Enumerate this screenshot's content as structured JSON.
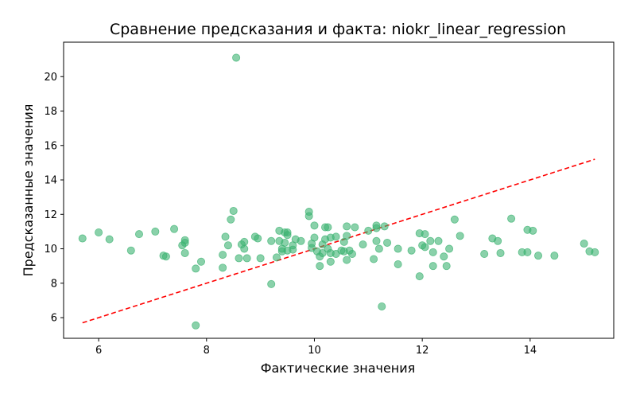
{
  "chart_data": {
    "type": "scatter",
    "title": "Сравнение предсказания и факта: niokr_linear_regression",
    "xlabel": "Фактические значения",
    "ylabel": "Предсказанные значения",
    "xlim": [
      5.35,
      15.55
    ],
    "ylim": [
      4.8,
      22.0
    ],
    "xticks": [
      6,
      8,
      10,
      12,
      14
    ],
    "yticks": [
      6,
      8,
      10,
      12,
      14,
      16,
      18,
      20
    ],
    "grid": false,
    "legend": "none",
    "point_color": "#3cb371",
    "line_color": "#ff0000",
    "reference_line": {
      "style": "dashed",
      "x": [
        5.7,
        15.2
      ],
      "y": [
        5.7,
        15.2
      ]
    },
    "points": [
      [
        5.7,
        10.6
      ],
      [
        6.0,
        10.95
      ],
      [
        6.2,
        10.55
      ],
      [
        6.6,
        9.9
      ],
      [
        6.75,
        10.85
      ],
      [
        7.05,
        11.0
      ],
      [
        7.2,
        9.6
      ],
      [
        7.25,
        9.55
      ],
      [
        7.4,
        11.15
      ],
      [
        7.55,
        10.2
      ],
      [
        7.6,
        10.5
      ],
      [
        7.6,
        10.35
      ],
      [
        7.6,
        9.75
      ],
      [
        7.8,
        8.85
      ],
      [
        7.8,
        5.55
      ],
      [
        7.9,
        9.25
      ],
      [
        8.3,
        9.65
      ],
      [
        8.3,
        8.9
      ],
      [
        8.35,
        10.7
      ],
      [
        8.4,
        10.2
      ],
      [
        8.45,
        11.7
      ],
      [
        8.5,
        12.2
      ],
      [
        8.55,
        21.1
      ],
      [
        8.6,
        9.45
      ],
      [
        8.65,
        10.25
      ],
      [
        8.7,
        10.4
      ],
      [
        8.7,
        10.0
      ],
      [
        8.75,
        9.45
      ],
      [
        8.9,
        10.7
      ],
      [
        8.95,
        10.6
      ],
      [
        9.0,
        9.45
      ],
      [
        9.2,
        7.95
      ],
      [
        9.2,
        10.45
      ],
      [
        9.3,
        9.5
      ],
      [
        9.35,
        10.45
      ],
      [
        9.35,
        11.05
      ],
      [
        9.4,
        10.0
      ],
      [
        9.4,
        9.85
      ],
      [
        9.45,
        10.95
      ],
      [
        9.45,
        10.35
      ],
      [
        9.5,
        10.95
      ],
      [
        9.5,
        10.8
      ],
      [
        9.5,
        9.9
      ],
      [
        9.6,
        9.95
      ],
      [
        9.6,
        10.2
      ],
      [
        9.65,
        10.55
      ],
      [
        9.75,
        10.45
      ],
      [
        9.9,
        12.15
      ],
      [
        9.9,
        11.9
      ],
      [
        9.95,
        10.3
      ],
      [
        9.95,
        10.05
      ],
      [
        10.0,
        10.65
      ],
      [
        10.0,
        11.35
      ],
      [
        10.05,
        9.85
      ],
      [
        10.1,
        9.55
      ],
      [
        10.1,
        9.0
      ],
      [
        10.15,
        9.75
      ],
      [
        10.15,
        10.25
      ],
      [
        10.2,
        10.55
      ],
      [
        10.2,
        11.25
      ],
      [
        10.25,
        11.25
      ],
      [
        10.25,
        10.0
      ],
      [
        10.3,
        9.25
      ],
      [
        10.3,
        9.75
      ],
      [
        10.3,
        10.65
      ],
      [
        10.4,
        10.7
      ],
      [
        10.4,
        9.7
      ],
      [
        10.5,
        9.9
      ],
      [
        10.55,
        10.4
      ],
      [
        10.55,
        9.85
      ],
      [
        10.6,
        11.3
      ],
      [
        10.6,
        10.75
      ],
      [
        10.6,
        9.35
      ],
      [
        10.65,
        9.9
      ],
      [
        10.7,
        9.7
      ],
      [
        10.75,
        11.25
      ],
      [
        10.9,
        10.25
      ],
      [
        11.0,
        11.05
      ],
      [
        11.1,
        9.4
      ],
      [
        11.15,
        11.2
      ],
      [
        11.15,
        11.35
      ],
      [
        11.15,
        10.45
      ],
      [
        11.2,
        10.0
      ],
      [
        11.25,
        6.65
      ],
      [
        11.3,
        11.3
      ],
      [
        11.35,
        10.35
      ],
      [
        11.55,
        10.0
      ],
      [
        11.55,
        9.1
      ],
      [
        11.8,
        9.9
      ],
      [
        11.95,
        8.4
      ],
      [
        11.95,
        10.9
      ],
      [
        12.0,
        10.2
      ],
      [
        12.05,
        10.85
      ],
      [
        12.05,
        10.1
      ],
      [
        12.15,
        10.45
      ],
      [
        12.2,
        9.0
      ],
      [
        12.2,
        9.8
      ],
      [
        12.3,
        10.45
      ],
      [
        12.4,
        9.55
      ],
      [
        12.45,
        9.0
      ],
      [
        12.5,
        10.0
      ],
      [
        12.6,
        11.7
      ],
      [
        12.7,
        10.75
      ],
      [
        13.15,
        9.7
      ],
      [
        13.3,
        10.6
      ],
      [
        13.4,
        10.45
      ],
      [
        13.45,
        9.75
      ],
      [
        13.65,
        11.75
      ],
      [
        13.85,
        9.8
      ],
      [
        13.95,
        9.8
      ],
      [
        13.95,
        11.1
      ],
      [
        14.05,
        11.05
      ],
      [
        14.15,
        9.6
      ],
      [
        14.45,
        9.6
      ],
      [
        15.0,
        10.3
      ],
      [
        15.1,
        9.85
      ],
      [
        15.2,
        9.8
      ]
    ]
  }
}
